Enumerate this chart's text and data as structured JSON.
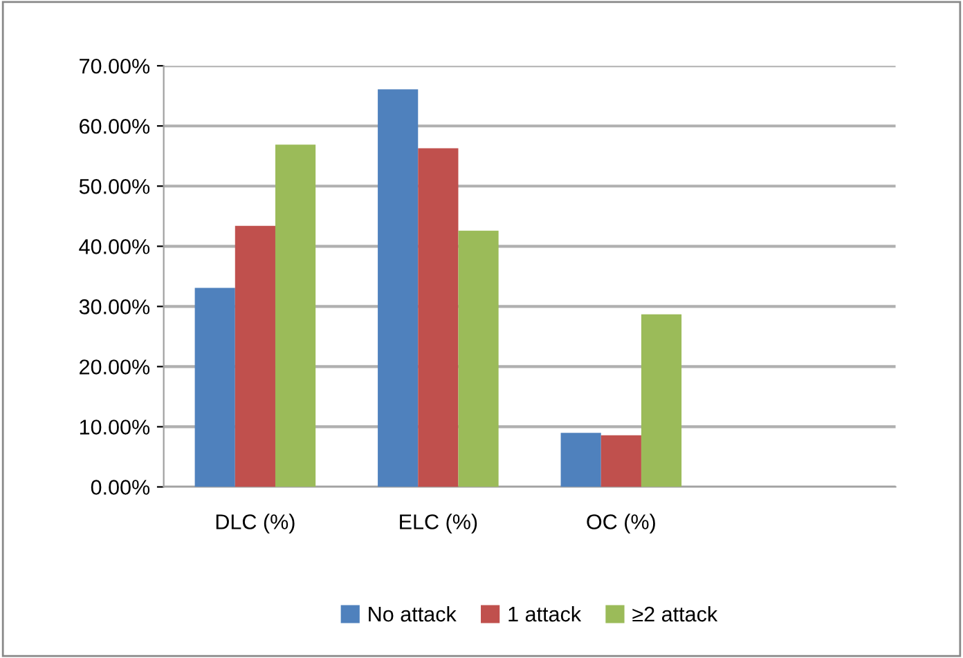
{
  "chart_data": {
    "type": "bar",
    "categories": [
      "DLC (%)",
      "ELC (%)",
      "OC (%)",
      null
    ],
    "series": [
      {
        "name": "No attack",
        "color": "#4f81bd",
        "values": [
          33.1,
          66.1,
          9.0,
          null
        ]
      },
      {
        "name": "1 attack",
        "color": "#c0504d",
        "values": [
          43.4,
          56.3,
          8.6,
          null
        ]
      },
      {
        "name": "≥2 attack",
        "color": "#9bbb59",
        "values": [
          56.9,
          42.6,
          28.7,
          null
        ]
      }
    ],
    "ylim": [
      0,
      70
    ],
    "yticks": [
      {
        "value": 0,
        "label": "0.00%"
      },
      {
        "value": 10,
        "label": "10.00%"
      },
      {
        "value": 20,
        "label": "20.00%"
      },
      {
        "value": 30,
        "label": "30.00%"
      },
      {
        "value": 40,
        "label": "40.00%"
      },
      {
        "value": 50,
        "label": "50.00%"
      },
      {
        "value": 60,
        "label": "60.00%"
      },
      {
        "value": 70,
        "label": "70.00%"
      }
    ],
    "grid": "y",
    "legend": "bottom"
  }
}
